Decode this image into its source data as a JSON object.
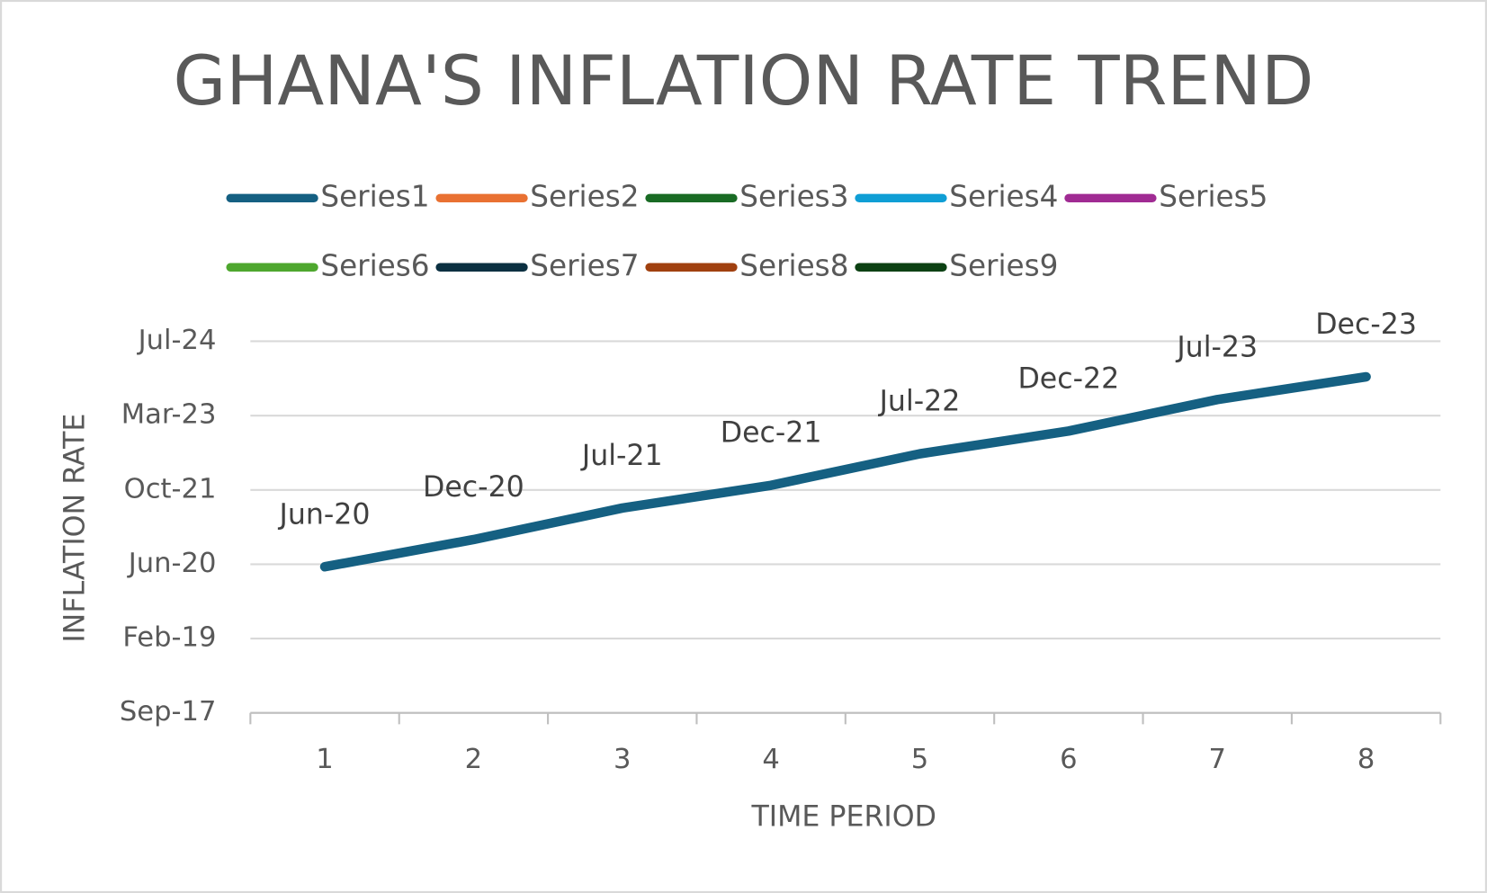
{
  "chart_data": {
    "type": "line",
    "title": "GHANA'S INFLATION RATE TREND",
    "x_label": "TIME PERIOD",
    "y_label": "INFLATION RATE",
    "categories": [
      "1",
      "2",
      "3",
      "4",
      "5",
      "6",
      "7",
      "8"
    ],
    "series": [
      {
        "name": "Series1",
        "color": "#156082",
        "values": [
          43983,
          44166,
          44378,
          44531,
          44743,
          44896,
          45108,
          45261
        ],
        "value_labels": [
          "Jun-20",
          "Dec-20",
          "Jul-21",
          "Dec-21",
          "Jul-22",
          "Dec-22",
          "Jul-23",
          "Dec-23"
        ]
      },
      {
        "name": "Series2",
        "color": "#e97132",
        "values": [
          null,
          null,
          null,
          null,
          null,
          null,
          null,
          null
        ]
      },
      {
        "name": "Series3",
        "color": "#196b24",
        "values": [
          null,
          null,
          null,
          null,
          null,
          null,
          null,
          null
        ]
      },
      {
        "name": "Series4",
        "color": "#0f9ed5",
        "values": [
          null,
          null,
          null,
          null,
          null,
          null,
          null,
          null
        ]
      },
      {
        "name": "Series5",
        "color": "#a02b93",
        "values": [
          null,
          null,
          null,
          null,
          null,
          null,
          null,
          null
        ]
      },
      {
        "name": "Series6",
        "color": "#4ea72e",
        "values": [
          null,
          null,
          null,
          null,
          null,
          null,
          null,
          null
        ]
      },
      {
        "name": "Series7",
        "color": "#0b3041",
        "values": [
          null,
          null,
          null,
          null,
          null,
          null,
          null,
          null
        ]
      },
      {
        "name": "Series8",
        "color": "#a0400f",
        "values": [
          null,
          null,
          null,
          null,
          null,
          null,
          null,
          null
        ]
      },
      {
        "name": "Series9",
        "color": "#0c4113",
        "values": [
          null,
          null,
          null,
          null,
          null,
          null,
          null,
          null
        ]
      }
    ],
    "ylim": [
      43000,
      45500
    ],
    "yticks": [
      {
        "value": 43000,
        "label": "Sep-17"
      },
      {
        "value": 43500,
        "label": "Feb-19"
      },
      {
        "value": 44000,
        "label": "Jun-20"
      },
      {
        "value": 44500,
        "label": "Oct-21"
      },
      {
        "value": 45000,
        "label": "Mar-23"
      },
      {
        "value": 45500,
        "label": "Jul-24"
      }
    ],
    "grid": true,
    "legend": "top"
  }
}
